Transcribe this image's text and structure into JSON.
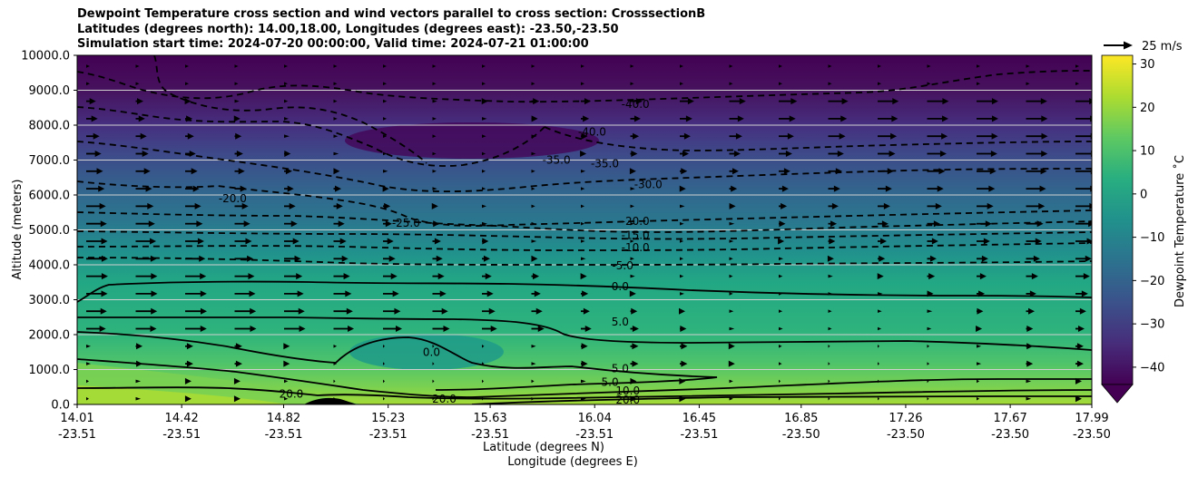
{
  "title_lines": [
    "Dewpoint Temperature cross section and wind vectors parallel to cross section: CrosssectionB",
    "Latitudes (degrees north): 14.00,18.00, Longitudes (degrees east): -23.50,-23.50",
    "Simulation start time: 2024-07-20 00:00:00, Valid time: 2024-07-21 01:00:00"
  ],
  "chart_data": {
    "type": "heatmap",
    "subtype": "filled contour cross section with wind vectors",
    "ylabel": "Altitude (meters)",
    "xlabel_lines": [
      "Latitude (degrees N)",
      "Longitude (degrees E)"
    ],
    "y_ticks": [
      "0.0",
      "1000.0",
      "2000.0",
      "3000.0",
      "4000.0",
      "5000.0",
      "6000.0",
      "7000.0",
      "8000.0",
      "9000.0",
      "10000.0"
    ],
    "ylim": [
      0,
      10000
    ],
    "x_ticks": [
      {
        "lat": "14.01",
        "lon": "-23.51"
      },
      {
        "lat": "14.42",
        "lon": "-23.51"
      },
      {
        "lat": "14.82",
        "lon": "-23.51"
      },
      {
        "lat": "15.23",
        "lon": "-23.51"
      },
      {
        "lat": "15.63",
        "lon": "-23.51"
      },
      {
        "lat": "16.04",
        "lon": "-23.51"
      },
      {
        "lat": "16.45",
        "lon": "-23.51"
      },
      {
        "lat": "16.85",
        "lon": "-23.50"
      },
      {
        "lat": "17.26",
        "lon": "-23.50"
      },
      {
        "lat": "17.67",
        "lon": "-23.50"
      },
      {
        "lat": "17.99",
        "lon": "-23.50"
      }
    ],
    "xlim": [
      14.01,
      17.99
    ],
    "grid": "horizontal",
    "colorbar": {
      "label": "Dewpoint Temperature ˚C",
      "ticks": [
        "30",
        "20",
        "10",
        "0",
        "−10",
        "−20",
        "−30",
        "−40"
      ],
      "range": [
        -44,
        32
      ],
      "extend": "min",
      "colormap": "viridis"
    },
    "quiver_key": "25 m/s",
    "contour_labels": [
      {
        "text": "-40.0",
        "x": 16.2,
        "y": 8600
      },
      {
        "text": "-40.0",
        "x": 16.03,
        "y": 7800
      },
      {
        "text": "-35.0",
        "x": 16.08,
        "y": 6900
      },
      {
        "text": "-35.0",
        "x": 15.89,
        "y": 7000
      },
      {
        "text": "-30.0",
        "x": 16.25,
        "y": 6300
      },
      {
        "text": "-25.0",
        "x": 15.3,
        "y": 5200
      },
      {
        "text": "-20.0",
        "x": 14.62,
        "y": 5900
      },
      {
        "text": "-20.0",
        "x": 16.2,
        "y": 5250
      },
      {
        "text": "-15.0",
        "x": 16.2,
        "y": 4850
      },
      {
        "text": "-10.0",
        "x": 16.2,
        "y": 4500
      },
      {
        "text": "-5.0",
        "x": 16.15,
        "y": 3980
      },
      {
        "text": "0.0",
        "x": 16.14,
        "y": 3380
      },
      {
        "text": "0.0",
        "x": 15.4,
        "y": 1500
      },
      {
        "text": "5.0",
        "x": 16.14,
        "y": 2370
      },
      {
        "text": "5.0",
        "x": 16.14,
        "y": 1020
      },
      {
        "text": "5.0",
        "x": 16.1,
        "y": 640
      },
      {
        "text": "10.0",
        "x": 16.17,
        "y": 390
      },
      {
        "text": "20.0",
        "x": 16.17,
        "y": 130
      },
      {
        "text": "20.0",
        "x": 14.85,
        "y": 300
      },
      {
        "text": "20.0",
        "x": 15.45,
        "y": 150
      }
    ]
  }
}
